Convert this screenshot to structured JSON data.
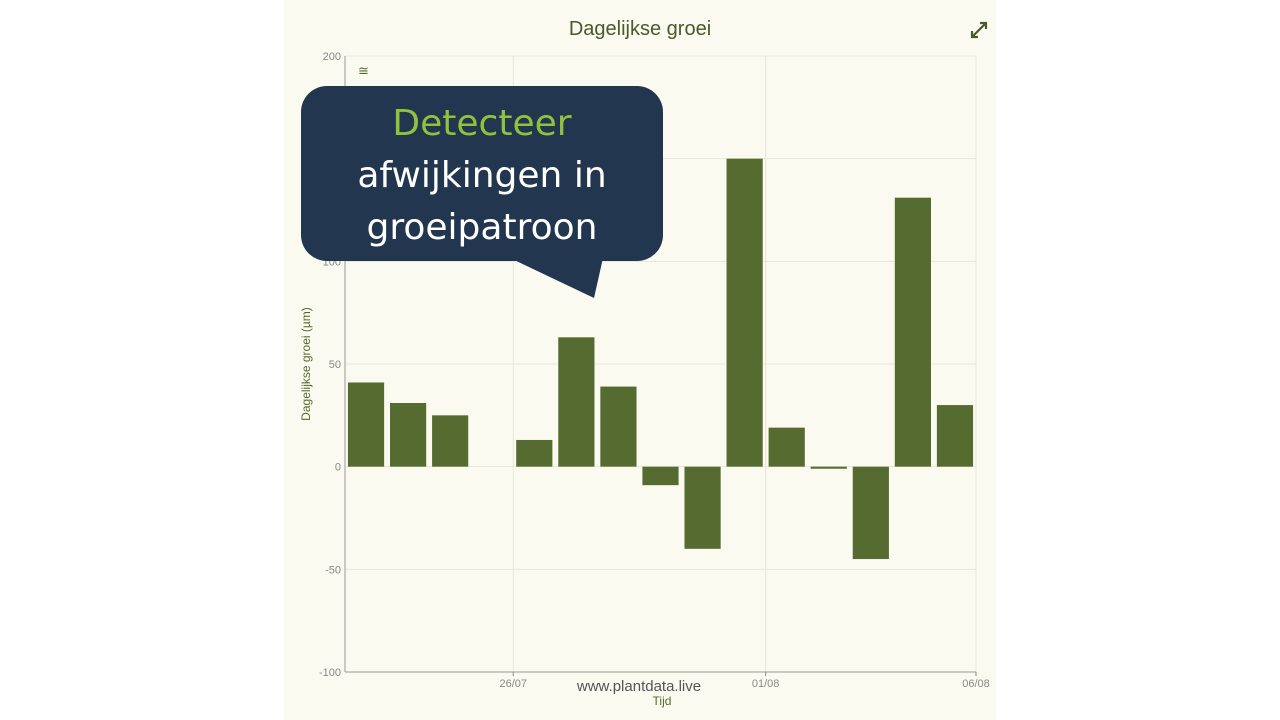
{
  "colors": {
    "bar": "#556b2f",
    "panel_bg": "#fafaf0",
    "callout_bg": "#22374f",
    "callout_highlight": "#8fc23e",
    "grid": "#e8e8d8"
  },
  "icons": {
    "expand": "expand-arrows-icon",
    "zoom": "approx-equal-icon"
  },
  "callout": {
    "highlight": "Detecteer",
    "line2": "afwijkingen in",
    "line3": "groeipatroon"
  },
  "watermark": "www.plantdata.live",
  "chart_data": {
    "type": "bar",
    "title": "Dagelijkse groei",
    "xlabel": "Tijd",
    "ylabel": "Dagelijkse groei (µm)",
    "ylim": [
      -100,
      200
    ],
    "yticks": [
      -100,
      -50,
      0,
      50,
      100,
      150,
      200
    ],
    "xlim": [
      "2024-07-22",
      "2024-08-06"
    ],
    "xticks": [
      {
        "date": "2024-07-26",
        "label": "26/07"
      },
      {
        "date": "2024-08-01",
        "label": "01/08"
      },
      {
        "date": "2024-08-06",
        "label": "06/08"
      }
    ],
    "grid": true,
    "x": [
      "2024-07-22",
      "2024-07-23",
      "2024-07-24",
      "2024-07-25",
      "2024-07-26",
      "2024-07-27",
      "2024-07-28",
      "2024-07-29",
      "2024-07-30",
      "2024-07-31",
      "2024-08-01",
      "2024-08-02",
      "2024-08-03",
      "2024-08-04",
      "2024-08-05"
    ],
    "values": [
      41,
      31,
      25,
      null,
      13,
      63,
      39,
      -9,
      -40,
      150,
      19,
      -1,
      -45,
      131,
      30
    ]
  }
}
